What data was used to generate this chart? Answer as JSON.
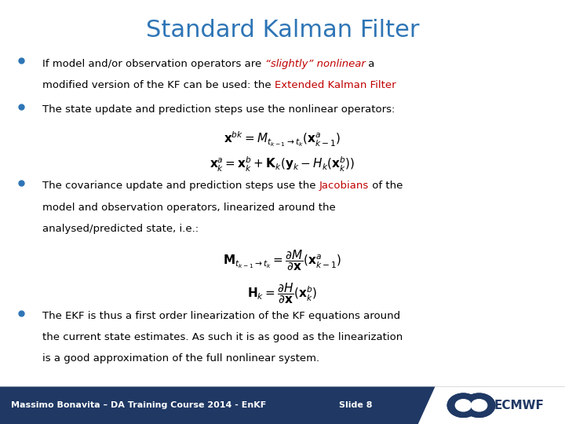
{
  "title": "Standard Kalman Filter",
  "title_color": "#2E75B6",
  "title_fontsize": 22,
  "bg_color": "#FFFFFF",
  "footer_bg_color": "#1F3864",
  "footer_text": "Massimo Bonavita – DA Training Course 2014 - EnKF",
  "footer_slide": "Slide 8",
  "footer_text_color": "#FFFFFF",
  "footer_fontsize": 8,
  "bullet_color": "#2E75B6",
  "text_color": "#000000",
  "red_color": "#C00000",
  "bullet2_text": "The state update and prediction steps use the nonlinear operators:",
  "bullet3_line2": "model and observation operators, linearized around the",
  "bullet3_line3": "analysed/predicted state, i.e.:",
  "bullet4_line1": "The EKF is thus a first order linearization of the KF equations around",
  "bullet4_line2": "the current state estimates. As such it is as good as the linearization",
  "bullet4_line3": "is a good approximation of the full nonlinear system."
}
